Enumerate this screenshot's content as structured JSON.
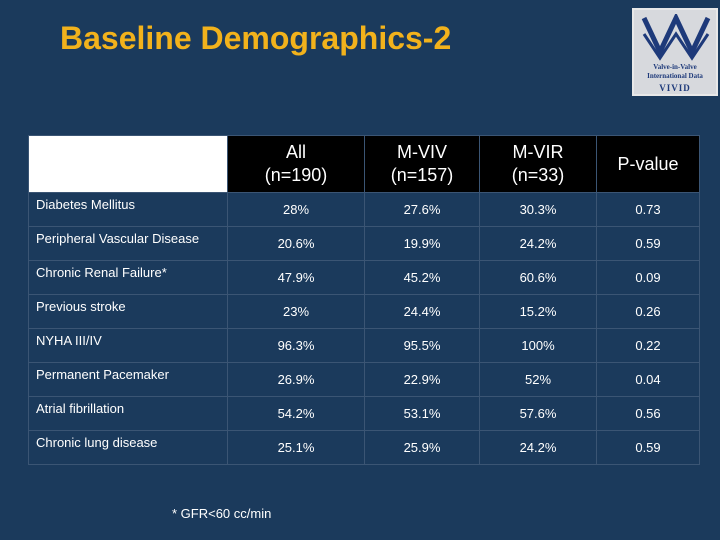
{
  "title": "Baseline Demographics-2",
  "logo": {
    "line1": "Valve-in-Valve",
    "line2": "International Data",
    "line3": "VIVID"
  },
  "table": {
    "headers": [
      "All\n(n=190)",
      "M-VIV\n(n=157)",
      "M-VIR\n(n=33)",
      "P-value"
    ],
    "rows": [
      {
        "label": "Diabetes Mellitus",
        "values": [
          "28%",
          "27.6%",
          "30.3%",
          "0.73"
        ]
      },
      {
        "label": "Peripheral Vascular Disease",
        "values": [
          "20.6%",
          "19.9%",
          "24.2%",
          "0.59"
        ]
      },
      {
        "label": "Chronic Renal Failure*",
        "values": [
          "47.9%",
          "45.2%",
          "60.6%",
          "0.09"
        ]
      },
      {
        "label": "Previous stroke",
        "values": [
          "23%",
          "24.4%",
          "15.2%",
          "0.26"
        ]
      },
      {
        "label": "NYHA III/IV",
        "values": [
          "96.3%",
          "95.5%",
          "100%",
          "0.22"
        ]
      },
      {
        "label": "Permanent Pacemaker",
        "values": [
          "26.9%",
          "22.9%",
          "52%",
          "0.04"
        ]
      },
      {
        "label": "Atrial fibrillation",
        "values": [
          "54.2%",
          "53.1%",
          "57.6%",
          "0.56"
        ]
      },
      {
        "label": "Chronic lung disease",
        "values": [
          "25.1%",
          "25.9%",
          "24.2%",
          "0.59"
        ]
      }
    ]
  },
  "footnote": "* GFR<60 cc/min",
  "colors": {
    "background": "#1b3a5c",
    "title": "#f2b21c",
    "header_bg": "#000000"
  }
}
